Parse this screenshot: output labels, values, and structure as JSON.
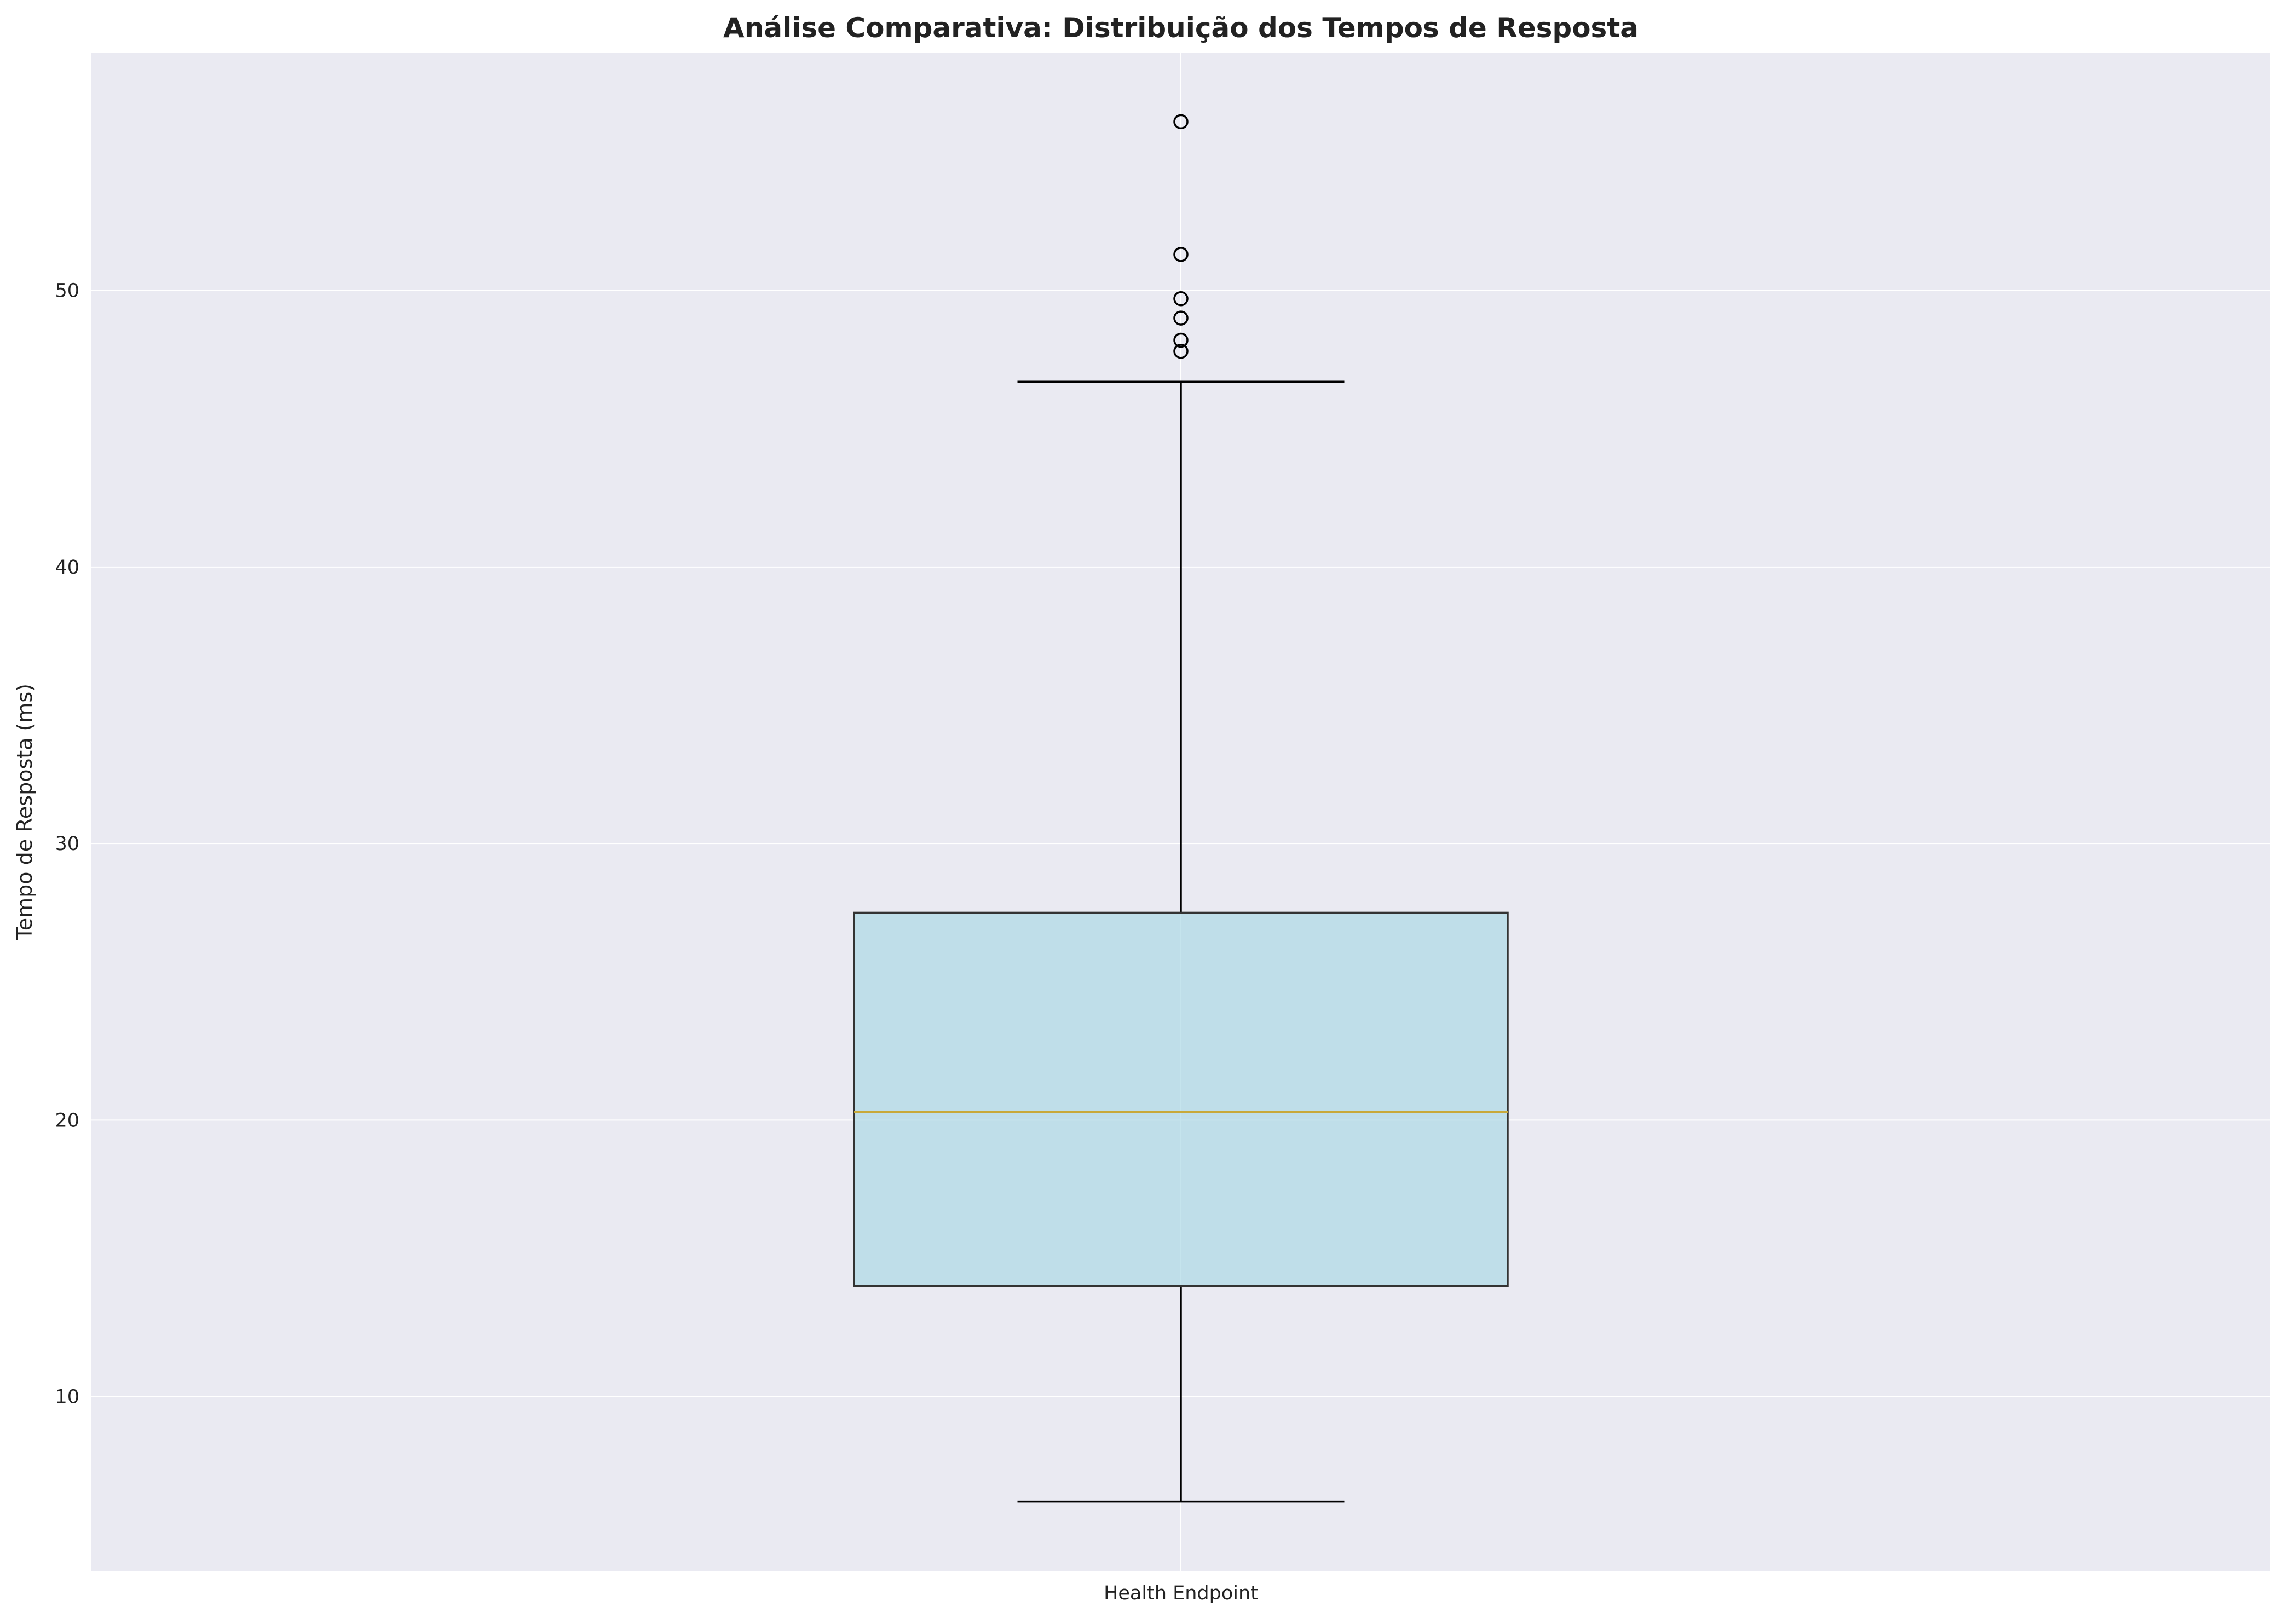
{
  "chart_data": {
    "type": "box",
    "title": "Análise Comparativa: Distribuição dos Tempos de Resposta",
    "xlabel": "",
    "ylabel": "Tempo de Resposta (ms)",
    "categories": [
      "Health Endpoint"
    ],
    "boxes": [
      {
        "category": "Health Endpoint",
        "whisker_low": 6.2,
        "q1": 14.0,
        "median": 20.3,
        "q3": 27.5,
        "whisker_high": 46.7,
        "outliers": [
          47.8,
          48.2,
          49.0,
          49.7,
          51.3,
          56.1
        ]
      }
    ],
    "y_ticks": [
      10,
      20,
      30,
      40,
      50
    ],
    "ylim": [
      3.7,
      58.6
    ],
    "grid": true,
    "colors": {
      "background": "#eaeaf2",
      "box_fill": "#add8e6",
      "median": "#c8a93a",
      "lines": "#000000",
      "grid": "#ffffff"
    }
  }
}
